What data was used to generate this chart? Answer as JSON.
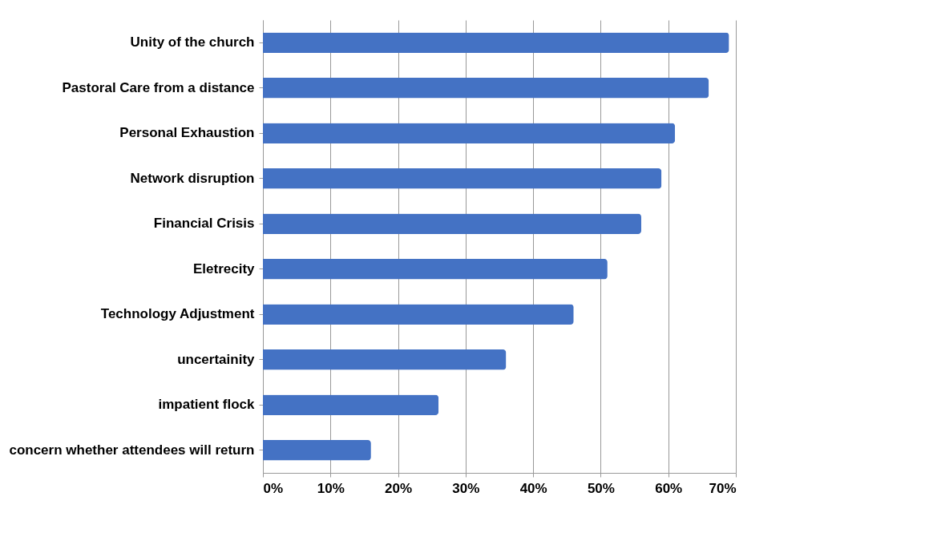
{
  "chart_data": {
    "type": "bar",
    "orientation": "horizontal",
    "categories": [
      "Unity of the church",
      "Pastoral Care from a distance",
      "Personal Exhaustion",
      "Network disruption",
      "Financial Crisis",
      "Eletrecity",
      "Technology Adjustment",
      "uncertainity",
      "impatient flock",
      "concern whether attendees will return"
    ],
    "values": [
      69,
      66,
      61,
      59,
      56,
      51,
      46,
      36,
      26,
      16
    ],
    "color": "#4472c4",
    "xlim": [
      0,
      70
    ],
    "xticks": [
      {
        "value": 0,
        "label": "0%"
      },
      {
        "value": 10,
        "label": "10%"
      },
      {
        "value": 20,
        "label": "20%"
      },
      {
        "value": 30,
        "label": "30%"
      },
      {
        "value": 40,
        "label": "40%"
      },
      {
        "value": 50,
        "label": "50%"
      },
      {
        "value": 60,
        "label": "60%"
      },
      {
        "value": 70,
        "label": "70%"
      }
    ],
    "grid": "x"
  }
}
